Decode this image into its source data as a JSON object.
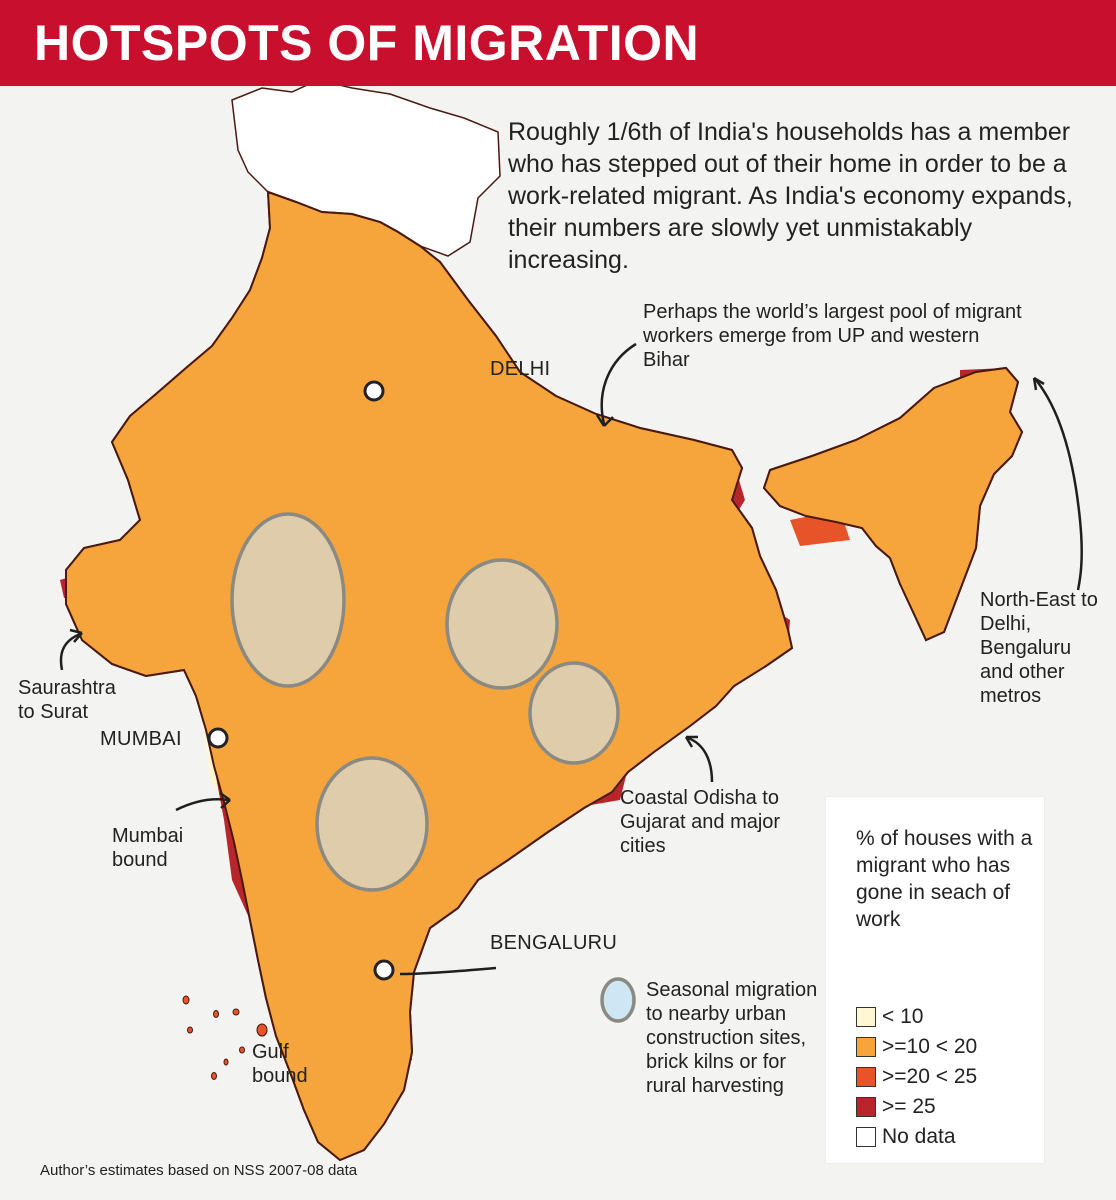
{
  "title": "HOTSPOTS OF MIGRATION",
  "intro": "Roughly 1/6th of India's households has a member who has stepped out of their home in order to be a work-related migrant. As India's economy expands, their numbers are slowly yet unmistakably increasing.",
  "annotations": {
    "up_bihar": "Perhaps the world’s largest pool of migrant workers emerge from UP and western Bihar",
    "north_east": "North-East to Delhi, Bengaluru and other metros",
    "saurashtra": "Saurashtra to Surat",
    "mumbai_bound": "Mumbai bound",
    "odisha": "Coastal Odisha to Gujarat and major cities",
    "gulf": "Gulf bound",
    "seasonal": "Seasonal migration to nearby urban construction sites, brick kilns or for rural harvesting"
  },
  "cities": {
    "delhi": "DELHI",
    "mumbai": "MUMBAI",
    "bengaluru": "BENGALURU"
  },
  "legend": {
    "title": "% of houses with a migrant who has gone in seach of work",
    "items": [
      {
        "label": "< 10",
        "color": "#fdf7d4"
      },
      {
        "label": ">=10 < 20",
        "color": "#f6a53c"
      },
      {
        "label": ">=20 < 25",
        "color": "#e8542a"
      },
      {
        "label": ">= 25",
        "color": "#b8252a"
      },
      {
        "label": "No data",
        "color": "#ffffff"
      }
    ],
    "seasonal_color": "#cfe6f5"
  },
  "source": "Author’s estimates based on NSS 2007-08 data",
  "colors": {
    "banner": "#c8102e",
    "background": "#f3f3f1",
    "border": "#4a1a10"
  }
}
